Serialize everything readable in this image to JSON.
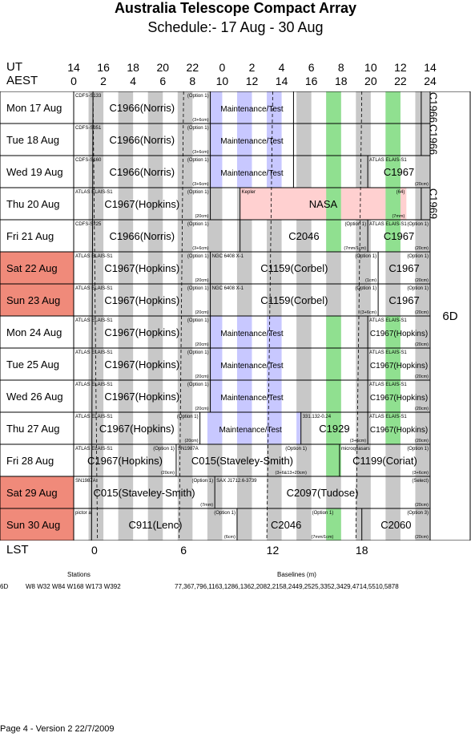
{
  "title": "Australia Telescope Compact Array",
  "subtitle": "Schedule:- 17 Aug - 30 Aug",
  "axes": {
    "ut_label": "UT",
    "aest_label": "AEST",
    "lst_label": "LST",
    "ut_ticks": [
      "14",
      "16",
      "18",
      "20",
      "22",
      "0",
      "2",
      "4",
      "6",
      "8",
      "10",
      "12",
      "14"
    ],
    "aest_ticks": [
      "0",
      "2",
      "4",
      "6",
      "8",
      "10",
      "12",
      "14",
      "16",
      "18",
      "20",
      "22",
      "24"
    ],
    "lst_ticks": [
      "0",
      "6",
      "12",
      "18"
    ]
  },
  "config_label": "6D",
  "days": [
    {
      "label": "Mon  17 Aug",
      "weekend": false
    },
    {
      "label": "Tue   18 Aug",
      "weekend": false
    },
    {
      "label": "Wed  19 Aug",
      "weekend": false
    },
    {
      "label": "Thu   20 Aug",
      "weekend": false
    },
    {
      "label": "Fri    21 Aug",
      "weekend": false
    },
    {
      "label": "Sat   22 Aug",
      "weekend": true
    },
    {
      "label": "Sun  23 Aug",
      "weekend": true
    },
    {
      "label": "Mon  24 Aug",
      "weekend": false
    },
    {
      "label": "Tue   25 Aug",
      "weekend": false
    },
    {
      "label": "Wed  26 Aug",
      "weekend": false
    },
    {
      "label": "Thu   27 Aug",
      "weekend": false
    },
    {
      "label": "Fri    28 Aug",
      "weekend": false
    },
    {
      "label": "Sat   29 Aug",
      "weekend": true
    },
    {
      "label": "Sun  30 Aug",
      "weekend": true
    }
  ],
  "blocks": [
    [
      {
        "start": 0,
        "end": 9.2,
        "main": "C1966(Norris)",
        "src": "CDFS-S133",
        "opt": "(Option 1)",
        "band": "(3+6cm)"
      },
      {
        "start": 9.2,
        "end": 14.8,
        "main": "Maintenance/Test",
        "mode": "maint"
      },
      {
        "start": 14.8,
        "end": 23.4,
        "main": "",
        "src": "",
        "opt": "",
        "band": ""
      },
      {
        "start": 23.4,
        "end": 24,
        "main": "C1966",
        "vertical": true
      }
    ],
    [
      {
        "start": 0,
        "end": 9.2,
        "main": "C1966(Norris)",
        "src": "CDFS-S351",
        "opt": "(Option 1)",
        "band": "(3+6cm)"
      },
      {
        "start": 9.2,
        "end": 14.8,
        "main": "Maintenance/Test",
        "mode": "maint"
      },
      {
        "start": 14.8,
        "end": 23.4,
        "main": ""
      },
      {
        "start": 23.4,
        "end": 24,
        "main": "C1966",
        "vertical": true
      }
    ],
    [
      {
        "start": 0,
        "end": 9.2,
        "main": "C1966(Norris)",
        "src": "CDFS-S160",
        "opt": "(Option 1)",
        "band": "(3+6cm)"
      },
      {
        "start": 9.2,
        "end": 14.8,
        "main": "Maintenance/Test",
        "mode": "maint"
      },
      {
        "start": 14.8,
        "end": 19.8,
        "main": ""
      },
      {
        "start": 19.8,
        "end": 24,
        "main": "C1967",
        "src": "ATLAS ELAIS-S1",
        "opt": "",
        "band": "(20cm)"
      }
    ],
    [
      {
        "start": 0,
        "end": 9.2,
        "main": "C1967(Hopkins)",
        "src": "ATLAS ELAIS-S1",
        "opt": "(Option 1)",
        "band": "(20cm)"
      },
      {
        "start": 9.2,
        "end": 11.2,
        "main": ""
      },
      {
        "start": 11.2,
        "end": 22.4,
        "main": "NASA",
        "src": "Kepler",
        "opt": "(64)",
        "band": "(7mm)",
        "mode": "nasa"
      },
      {
        "start": 23.4,
        "end": 24,
        "main": "C1969",
        "vertical": true
      }
    ],
    [
      {
        "start": 0,
        "end": 9.2,
        "main": "C1966(Norris)",
        "src": "CDFS-S225",
        "opt": "(Option 1)",
        "band": "(3+6cm)"
      },
      {
        "start": 11.2,
        "end": 19.8,
        "main": "C2046",
        "src": "",
        "opt": "(Option 1)",
        "band": "(7mm/1cm)"
      },
      {
        "start": 19.8,
        "end": 24,
        "main": "C1967",
        "src": "ATLAS ELAIS-S1",
        "opt": "(Option 1)",
        "band": "(20cm)"
      }
    ],
    [
      {
        "start": 0,
        "end": 9.2,
        "main": "C1967(Hopkins)",
        "src": "ATLAS ELAIS-S1",
        "opt": "(Option 1)",
        "band": "(20cm)"
      },
      {
        "start": 9.2,
        "end": 20.5,
        "main": "C1159(Corbel)",
        "src": "NGC 6408 X-1",
        "opt": "(Option 1)",
        "band": "(1cm)"
      },
      {
        "start": 20.5,
        "end": 24,
        "main": "C1967",
        "src": "",
        "opt": "(Option 1)",
        "band": "(20cm)"
      }
    ],
    [
      {
        "start": 0,
        "end": 9.2,
        "main": "C1967(Hopkins)",
        "src": "ATLAS ELAIS-S1",
        "opt": "(Option 1)",
        "band": "(20cm)"
      },
      {
        "start": 9.2,
        "end": 20.5,
        "main": "C1159(Corbel)",
        "src": "NGC 6408 X-1",
        "opt": "(Option 1)",
        "band": "(3+6cm)"
      },
      {
        "start": 20.5,
        "end": 24,
        "main": "C1967",
        "src": "",
        "opt": "(Option 1)",
        "band": "(20cm)"
      }
    ],
    [
      {
        "start": 0,
        "end": 9.2,
        "main": "C1967(Hopkins)",
        "src": "ATLAS ELAIS-S1",
        "opt": "(Option 1)",
        "band": "(20cm)"
      },
      {
        "start": 9.2,
        "end": 14.8,
        "main": "Maintenance/Test",
        "mode": "maint"
      },
      {
        "start": 19.8,
        "end": 24,
        "main": "C1967(Hopkins)",
        "src": "ATLAS ELAIS-S1",
        "opt": "",
        "band": "(20cm)",
        "small": true
      }
    ],
    [
      {
        "start": 0,
        "end": 9.2,
        "main": "C1967(Hopkins)",
        "src": "ATLAS ELAIS-S1",
        "opt": "(Option 1)",
        "band": "(20cm)"
      },
      {
        "start": 9.2,
        "end": 14.8,
        "main": "Maintenance/Test",
        "mode": "maint"
      },
      {
        "start": 19.8,
        "end": 24,
        "main": "C1967(Hopkins)",
        "src": "ATLAS ELAIS-S1",
        "opt": "",
        "band": "(20cm)",
        "small": true
      }
    ],
    [
      {
        "start": 0,
        "end": 9.2,
        "main": "C1967(Hopkins)",
        "src": "ATLAS ELAIS-S1",
        "opt": "(Option 1)",
        "band": "(20cm)"
      },
      {
        "start": 9.2,
        "end": 14.8,
        "main": "Maintenance/Test",
        "mode": "maint"
      },
      {
        "start": 19.8,
        "end": 24,
        "main": "C1967(Hopkins)",
        "src": "ATLAS ELAIS-S1",
        "opt": "",
        "band": "(20cm)",
        "small": true
      }
    ],
    [
      {
        "start": 0,
        "end": 8.5,
        "main": "C1967(Hopkins)",
        "src": "ATLAS ELAIS-S1",
        "opt": "(Option 1)",
        "band": "(20cm)"
      },
      {
        "start": 8.5,
        "end": 15.3,
        "main": "Maintenance/Test",
        "mode": "maint"
      },
      {
        "start": 15.3,
        "end": 19.8,
        "main": "C1929",
        "src": "331.132-0.24",
        "opt": "",
        "band": "(3+6cm)"
      },
      {
        "start": 19.8,
        "end": 24,
        "main": "C1967(Hopkins)",
        "src": "ATLAS ELAIS-S1",
        "opt": "",
        "band": "(20cm)",
        "small": true
      }
    ],
    [
      {
        "start": 0,
        "end": 6.9,
        "main": "C1967(Hopkins)",
        "src": "ATLAS ELAIS-S1",
        "opt": "(Option 1)",
        "band": "(20cm)"
      },
      {
        "start": 6.9,
        "end": 15.8,
        "main": "C015(Staveley-Smith)",
        "src": "SN1987A",
        "opt": "(Option 1)",
        "band": "(3+6&13+20cm)"
      },
      {
        "start": 17.9,
        "end": 24,
        "main": "C1199(Coriat)",
        "src": "microquasars",
        "opt": "(Option 1)",
        "band": "(3+6cm)"
      }
    ],
    [
      {
        "start": 0,
        "end": 9.5,
        "main": "C015(Staveley-Smith)",
        "src": "SN1987A",
        "opt": "(Option 1)",
        "band": "(7mm)"
      },
      {
        "start": 9.5,
        "end": 24,
        "main": "C2097(Tudose)",
        "src": "SAX J1712.6-3739",
        "opt": "(Select)",
        "band": "(20cm)"
      }
    ],
    [
      {
        "start": 0,
        "end": 11.0,
        "main": "C911(Lenc)",
        "src": "pictor a",
        "opt": "(Option 1)",
        "band": "(6cm)"
      },
      {
        "start": 11.0,
        "end": 17.6,
        "main": "C2046",
        "src": "",
        "opt": "(Option 1)",
        "band": "(7mm/1cm)"
      },
      {
        "start": 19.4,
        "end": 24,
        "main": "C2060",
        "src": "",
        "opt": "(Option 3)",
        "band": "(20cm)"
      }
    ]
  ],
  "stations_header": "Stations",
  "baselines_header": "Baselines (m)",
  "config_row_label": "6D",
  "stations": "W8 W32 W84 W168 W173 W392",
  "baselines": "77,367,796,1163,1286,1362,2082,2158,2449,2525,3352,3429,4714,5510,5878",
  "footer": "Page 4 - Version 2  22/7/2009",
  "colors": {
    "grey": "#c8c8c8",
    "maint": "#c8c8ff",
    "green": "#90e090",
    "nasa": "#ffd0d0",
    "weekend": "#f08a7a"
  }
}
